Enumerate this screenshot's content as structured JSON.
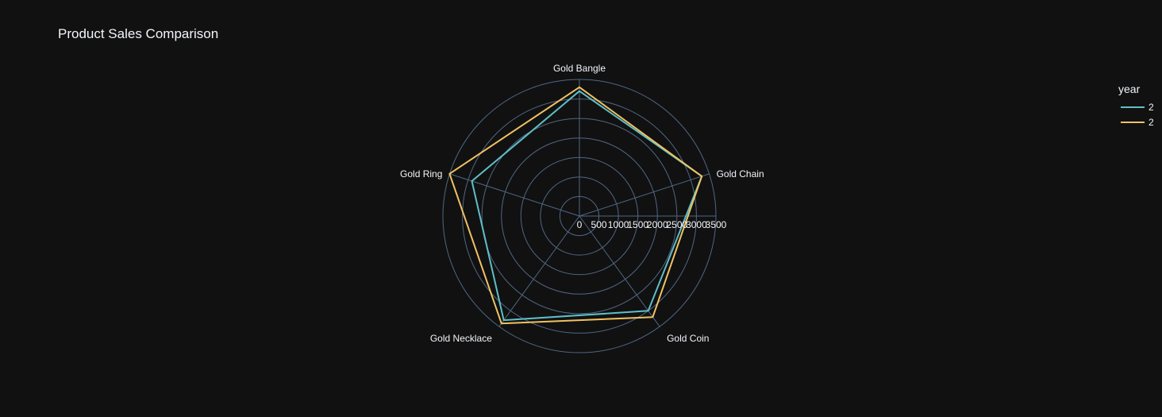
{
  "chart_data": {
    "type": "radar",
    "title": "Product Sales Comparison",
    "categories": [
      "Gold Bangle",
      "Gold Chain",
      "Gold Coin",
      "Gold Necklace",
      "Gold Ring"
    ],
    "radial_axis": {
      "range": [
        0,
        3500
      ],
      "ticks": [
        0,
        500,
        1000,
        1500,
        2000,
        2500,
        3000,
        3500
      ]
    },
    "legend": {
      "title": "year",
      "placement": "top-right"
    },
    "series": [
      {
        "name": "2",
        "color": "#5fbfc7",
        "values": [
          3200,
          3300,
          3000,
          3300,
          2900
        ]
      },
      {
        "name": "2",
        "color": "#f0c263",
        "values": [
          3300,
          3300,
          3200,
          3400,
          3500
        ]
      }
    ],
    "grid": true
  }
}
